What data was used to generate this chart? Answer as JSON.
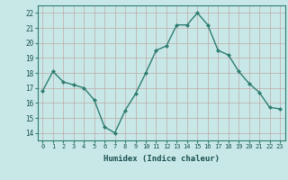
{
  "x": [
    0,
    1,
    2,
    3,
    4,
    5,
    6,
    7,
    8,
    9,
    10,
    11,
    12,
    13,
    14,
    15,
    16,
    17,
    18,
    19,
    20,
    21,
    22,
    23
  ],
  "y": [
    16.8,
    18.1,
    17.4,
    17.2,
    17.0,
    16.2,
    14.4,
    14.0,
    15.5,
    16.6,
    18.0,
    19.5,
    19.8,
    21.2,
    21.2,
    22.0,
    21.2,
    19.5,
    19.2,
    18.1,
    17.3,
    16.7,
    15.7,
    15.6
  ],
  "line_color": "#2e7d6e",
  "marker_color": "#2e7d6e",
  "bg_color": "#c8e8e8",
  "grid_color": "#c0a8a8",
  "xlabel": "Humidex (Indice chaleur)",
  "ylim": [
    13.5,
    22.5
  ],
  "xlim": [
    -0.5,
    23.5
  ],
  "yticks": [
    14,
    15,
    16,
    17,
    18,
    19,
    20,
    21,
    22
  ],
  "xticks": [
    0,
    1,
    2,
    3,
    4,
    5,
    6,
    7,
    8,
    9,
    10,
    11,
    12,
    13,
    14,
    15,
    16,
    17,
    18,
    19,
    20,
    21,
    22,
    23
  ],
  "tick_color": "#1a5050",
  "label_color": "#1a5050",
  "spine_color": "#2e7d6e"
}
